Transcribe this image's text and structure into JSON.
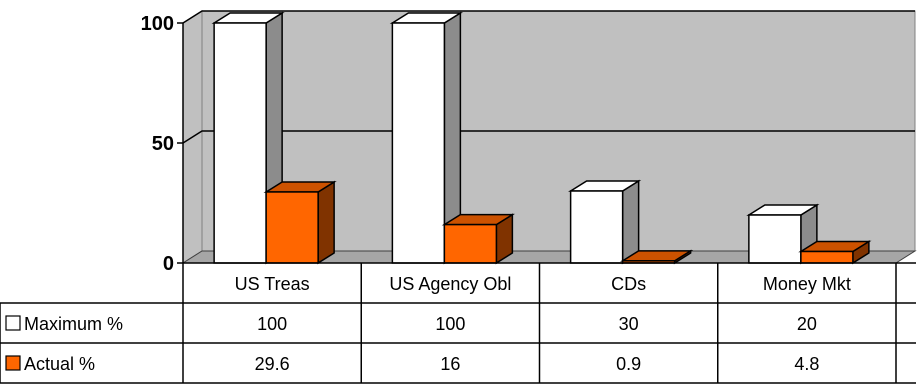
{
  "chart_data": {
    "type": "bar",
    "style": "3d-clustered-column-with-data-table",
    "categories": [
      "US Treas",
      "US Agency Obl",
      "CDs",
      "Money Mkt"
    ],
    "series": [
      {
        "name": "Maximum %",
        "values": [
          100,
          100,
          30,
          20
        ],
        "color": "#ffffff",
        "display": [
          "100",
          "100",
          "30",
          "20"
        ]
      },
      {
        "name": "Actual %",
        "values": [
          29.6,
          16,
          0.9,
          4.8
        ],
        "color": "#ff6600",
        "display": [
          "29.6",
          "16",
          "0.9",
          "4.8"
        ]
      }
    ],
    "yticks": [
      "0",
      "50",
      "100"
    ],
    "ylim": [
      0,
      100
    ],
    "gridlines": [
      50,
      100
    ],
    "plot_background": "#c0c0c0",
    "title": "",
    "xlabel": "",
    "ylabel": ""
  }
}
